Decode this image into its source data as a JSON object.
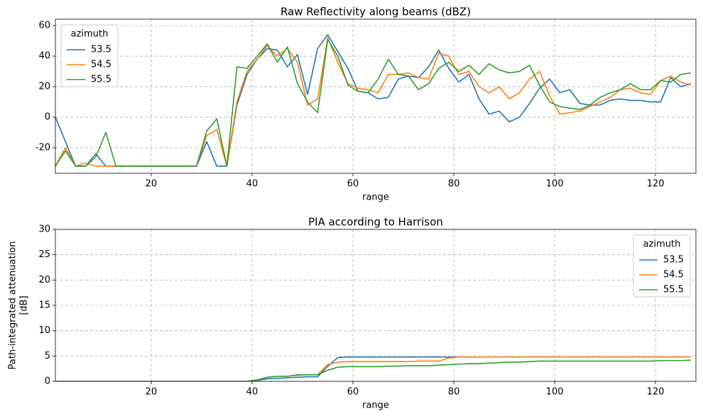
{
  "chart_data": [
    {
      "type": "line",
      "title": "Raw Reflectivity along beams (dBZ)",
      "xlabel": "range",
      "x": [
        1,
        3,
        5,
        7,
        9,
        11,
        13,
        15,
        17,
        19,
        21,
        23,
        25,
        27,
        29,
        31,
        33,
        35,
        37,
        39,
        41,
        43,
        45,
        47,
        49,
        51,
        53,
        55,
        57,
        59,
        61,
        63,
        65,
        67,
        69,
        71,
        73,
        75,
        77,
        79,
        81,
        83,
        85,
        87,
        89,
        91,
        93,
        95,
        97,
        99,
        101,
        103,
        105,
        107,
        109,
        111,
        113,
        115,
        117,
        119,
        121,
        123,
        125,
        127
      ],
      "xlim": [
        1,
        128
      ],
      "xticks": [
        20,
        40,
        60,
        80,
        100,
        120
      ],
      "ylim": [
        -36.7,
        64.2
      ],
      "yticks": [
        -20,
        0,
        20,
        40,
        60
      ],
      "grid": true,
      "legend_title": "azimuth",
      "legend": "upper left",
      "series": [
        {
          "name": "53.5",
          "color": "#1f77b4",
          "values": [
            0,
            -16,
            -32,
            -32,
            -24,
            -32,
            -32,
            -32,
            -32,
            -32,
            -32,
            -32,
            -32,
            -32,
            -32,
            -16,
            -32,
            -32,
            8,
            28,
            38,
            45,
            44,
            33,
            41,
            15,
            45,
            54,
            43,
            32,
            17,
            16,
            12,
            13,
            25,
            27,
            26,
            33,
            44,
            32,
            23,
            28,
            12,
            2,
            4,
            -3,
            0,
            9,
            19,
            25,
            16,
            18,
            9,
            8,
            8,
            11,
            12,
            11,
            11,
            10,
            10,
            26,
            20,
            22
          ]
        },
        {
          "name": "54.5",
          "color": "#ff7f0e",
          "values": [
            -32,
            -20,
            -32,
            -30,
            -32,
            -32,
            -32,
            -32,
            -32,
            -32,
            -32,
            -32,
            -32,
            -32,
            -32,
            -12,
            -8,
            -32,
            10,
            30,
            38,
            47,
            40,
            45,
            36,
            8,
            12,
            52,
            36,
            22,
            19,
            18,
            16,
            28,
            28,
            29,
            26,
            25,
            42,
            40,
            28,
            30,
            20,
            16,
            20,
            12,
            16,
            25,
            30,
            14,
            2,
            3,
            4,
            7,
            10,
            13,
            18,
            19,
            16,
            15,
            24,
            27,
            23,
            21
          ]
        },
        {
          "name": "55.5",
          "color": "#2ca02c",
          "values": [
            -32,
            -22,
            -32,
            -32,
            -26,
            -10,
            -32,
            -32,
            -32,
            -32,
            -32,
            -32,
            -32,
            -32,
            -32,
            -9,
            -1,
            -32,
            33,
            32,
            40,
            48,
            36,
            46,
            22,
            10,
            3,
            51,
            40,
            21,
            17,
            16,
            25,
            38,
            28,
            27,
            18,
            22,
            32,
            36,
            30,
            34,
            28,
            35,
            31,
            29,
            30,
            34,
            21,
            10,
            7,
            6,
            5,
            8,
            13,
            16,
            18,
            22,
            18,
            18,
            24,
            23,
            28,
            29
          ]
        }
      ]
    },
    {
      "type": "line",
      "title": "PIA according to Harrison",
      "xlabel": "range",
      "ylabel": [
        "Path-integrated attenuation",
        "[dB]"
      ],
      "x": [
        1,
        3,
        5,
        7,
        9,
        11,
        13,
        15,
        17,
        19,
        21,
        23,
        25,
        27,
        29,
        31,
        33,
        35,
        37,
        39,
        41,
        43,
        45,
        47,
        49,
        51,
        53,
        55,
        57,
        59,
        61,
        63,
        65,
        67,
        69,
        71,
        73,
        75,
        77,
        79,
        81,
        83,
        85,
        87,
        89,
        91,
        93,
        95,
        97,
        99,
        101,
        103,
        105,
        107,
        109,
        111,
        113,
        115,
        117,
        119,
        121,
        123,
        125,
        127
      ],
      "xlim": [
        1,
        128
      ],
      "xticks": [
        20,
        40,
        60,
        80,
        100,
        120
      ],
      "ylim": [
        0,
        30
      ],
      "yticks": [
        0,
        5,
        10,
        15,
        20,
        25,
        30
      ],
      "grid": true,
      "legend_title": "azimuth",
      "legend": "upper right",
      "series": [
        {
          "name": "53.5",
          "color": "#1f77b4",
          "values": [
            0,
            0,
            0,
            0,
            0,
            0,
            0,
            0,
            0,
            0,
            0,
            0,
            0,
            0,
            0,
            0,
            0,
            0,
            0,
            0,
            0.2,
            0.5,
            0.6,
            0.7,
            0.8,
            0.9,
            0.9,
            3.0,
            4.7,
            4.8,
            4.8,
            4.8,
            4.8,
            4.8,
            4.8,
            4.8,
            4.8,
            4.8,
            4.8,
            4.8,
            4.8,
            4.8,
            4.8,
            4.8,
            4.8,
            4.8,
            4.8,
            4.8,
            4.8,
            4.8,
            4.8,
            4.8,
            4.8,
            4.8,
            4.8,
            4.8,
            4.8,
            4.8,
            4.8,
            4.8,
            4.8,
            4.8,
            4.8,
            4.8
          ]
        },
        {
          "name": "54.5",
          "color": "#ff7f0e",
          "values": [
            0,
            0,
            0,
            0,
            0,
            0,
            0,
            0,
            0,
            0,
            0,
            0,
            0,
            0,
            0,
            0,
            0,
            0,
            0,
            0,
            0.3,
            0.8,
            1.0,
            1.0,
            1.2,
            1.3,
            1.3,
            3.3,
            3.8,
            3.9,
            3.9,
            3.9,
            3.9,
            3.9,
            3.9,
            3.9,
            4.0,
            4.0,
            4.0,
            4.6,
            4.8,
            4.8,
            4.8,
            4.8,
            4.8,
            4.8,
            4.8,
            4.8,
            4.8,
            4.8,
            4.8,
            4.8,
            4.8,
            4.8,
            4.8,
            4.8,
            4.8,
            4.8,
            4.8,
            4.8,
            4.8,
            4.8,
            4.8,
            4.8
          ]
        },
        {
          "name": "55.5",
          "color": "#2ca02c",
          "values": [
            0,
            0,
            0,
            0,
            0,
            0,
            0,
            0,
            0,
            0,
            0,
            0,
            0,
            0,
            0,
            0,
            0,
            0,
            0,
            0,
            0.3,
            0.8,
            1.0,
            1.0,
            1.3,
            1.3,
            1.3,
            2.2,
            2.8,
            2.9,
            2.9,
            2.9,
            2.9,
            3.0,
            3.0,
            3.1,
            3.1,
            3.1,
            3.2,
            3.3,
            3.4,
            3.5,
            3.5,
            3.6,
            3.7,
            3.8,
            3.8,
            3.9,
            4.0,
            4.0,
            4.0,
            4.0,
            4.0,
            4.0,
            4.0,
            4.0,
            4.0,
            4.0,
            4.0,
            4.0,
            4.1,
            4.1,
            4.1,
            4.2
          ]
        }
      ]
    }
  ]
}
